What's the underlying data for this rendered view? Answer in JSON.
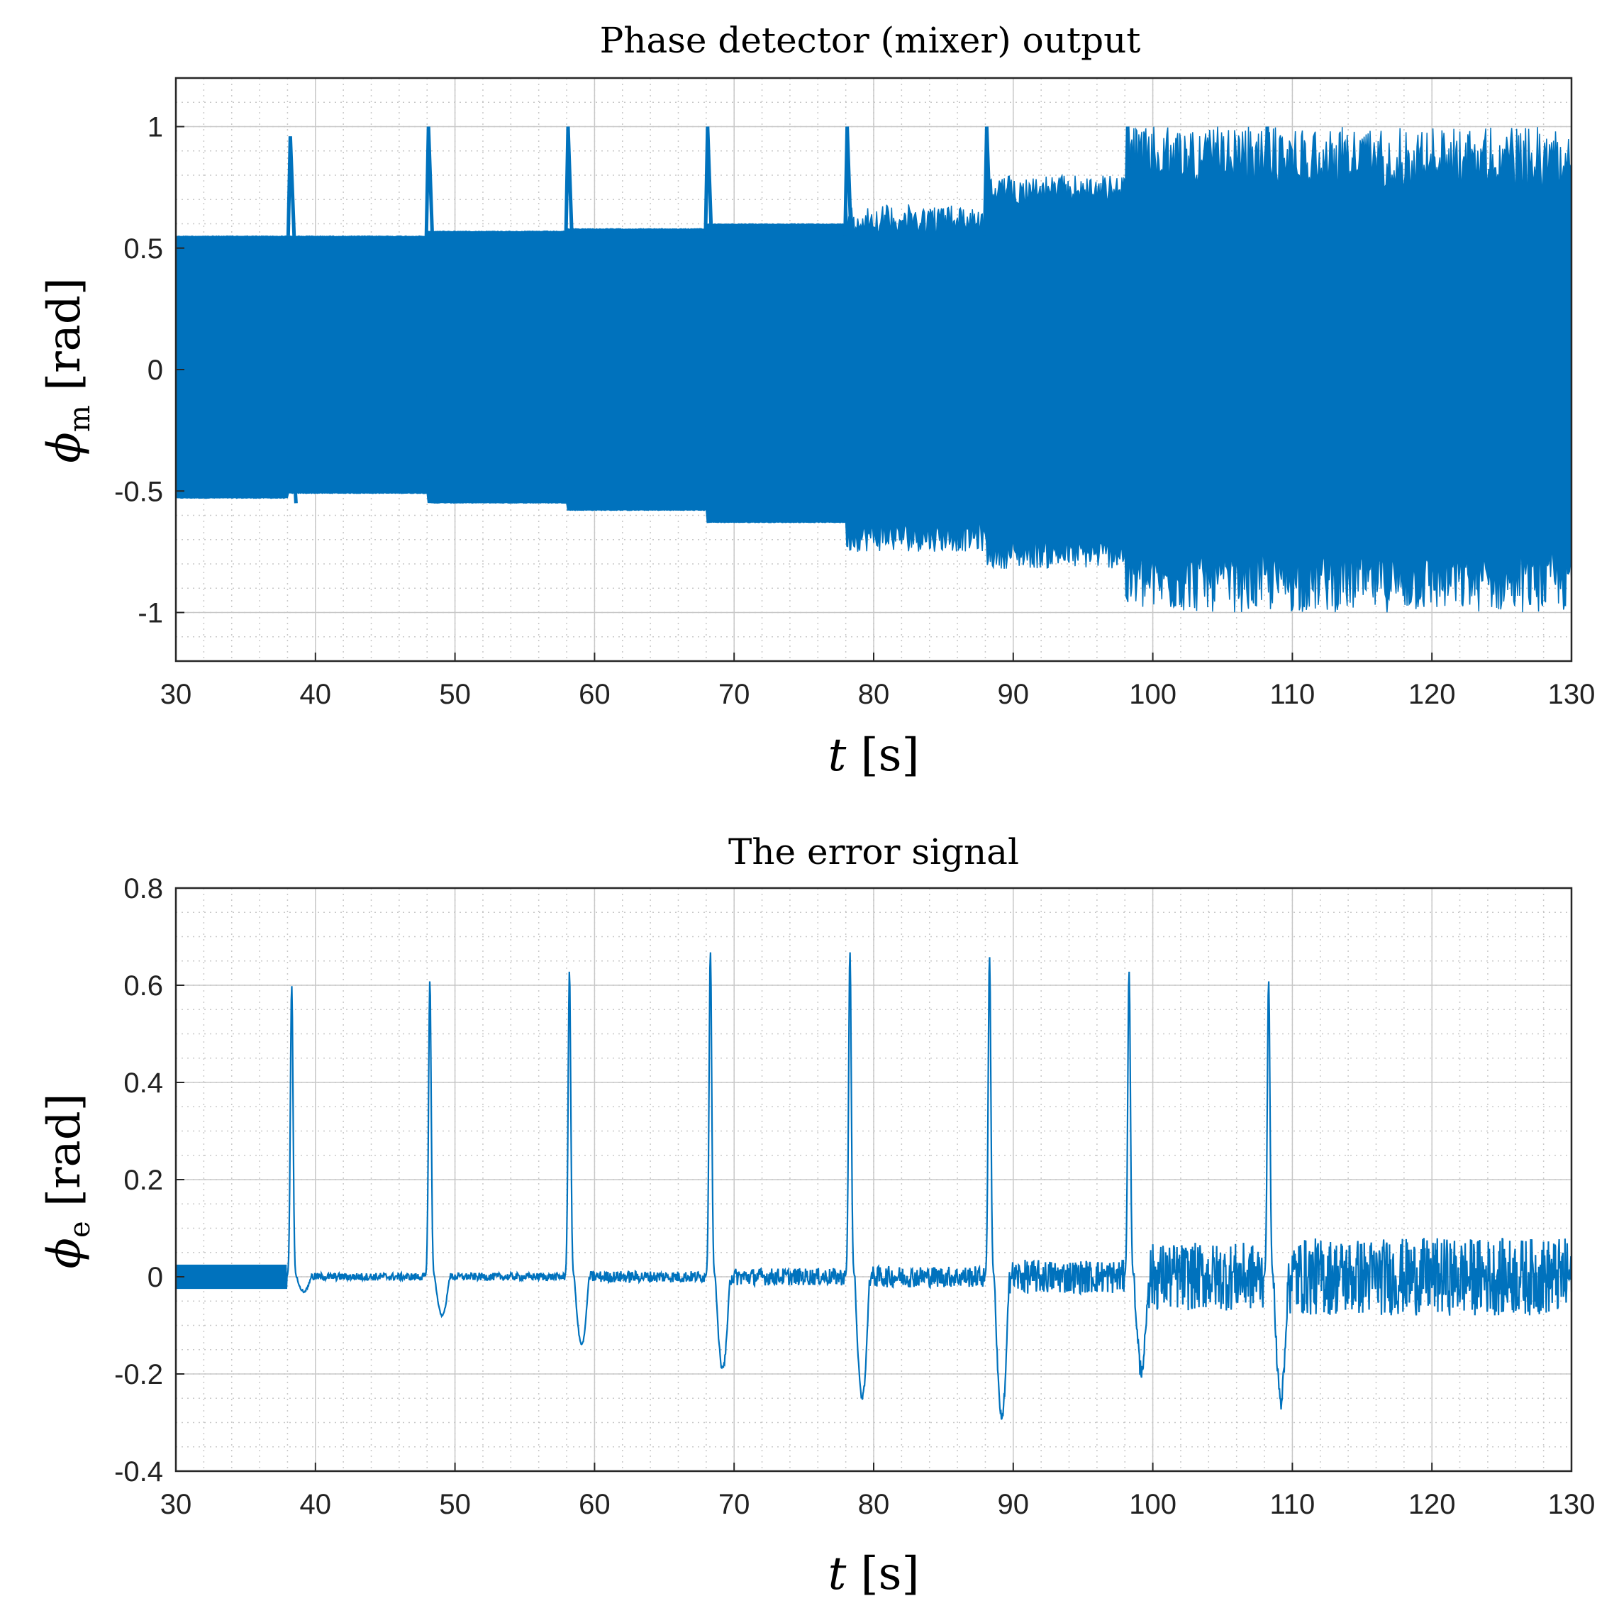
{
  "figure": {
    "background": "#ffffff",
    "series_color": "#0072BD"
  },
  "chart_data": [
    {
      "id": "top",
      "type": "line",
      "title": "Phase detector (mixer) output",
      "ylabel_symbol": "ϕ",
      "ylabel_sub": "m",
      "ylabel_unit": " [rad]",
      "xlabel_symbol": "t",
      "xlabel_unit": " [s]",
      "xlim": [
        30,
        130
      ],
      "ylim": [
        -1.2,
        1.2
      ],
      "xticks": [
        30,
        40,
        50,
        60,
        70,
        80,
        90,
        100,
        110,
        120,
        130
      ],
      "xtick_labels": [
        "30",
        "40",
        "50",
        "60",
        "70",
        "80",
        "90",
        "100",
        "110",
        "120",
        "130"
      ],
      "yticks": [
        -1,
        -0.5,
        0,
        0.5,
        1
      ],
      "ytick_labels": [
        "-1",
        "-0.5",
        "0",
        "0.5",
        "1"
      ],
      "grid": true,
      "minor_grid": true,
      "envelope": {
        "description": "dense oscillation envelope (min/max over time)",
        "segments": [
          {
            "t_start": 30,
            "t_end": 38,
            "max": 0.55,
            "min": -0.53
          },
          {
            "t_start": 38,
            "t_end": 48,
            "max": 0.55,
            "min": -0.51
          },
          {
            "t_start": 48,
            "t_end": 58,
            "max": 0.57,
            "min": -0.55
          },
          {
            "t_start": 58,
            "t_end": 68,
            "max": 0.58,
            "min": -0.58
          },
          {
            "t_start": 68,
            "t_end": 78,
            "max": 0.6,
            "min": -0.63
          },
          {
            "t_start": 78,
            "t_end": 88,
            "max": 0.68,
            "min": -0.75
          },
          {
            "t_start": 88,
            "t_end": 98,
            "max": 0.8,
            "min": -0.82
          },
          {
            "t_start": 98,
            "t_end": 108,
            "max": 1.0,
            "min": -1.0
          },
          {
            "t_start": 108,
            "t_end": 130,
            "max": 1.0,
            "min": -1.0
          }
        ]
      },
      "spikes": [
        {
          "t": 38.2,
          "max": 0.96,
          "min": -0.13
        },
        {
          "t": 48.1,
          "max": 1.0,
          "min": -0.08
        },
        {
          "t": 58.1,
          "max": 1.0,
          "min": -0.08
        },
        {
          "t": 68.1,
          "max": 1.0,
          "min": -0.11
        },
        {
          "t": 78.1,
          "max": 1.0,
          "min": -0.12
        },
        {
          "t": 88.1,
          "max": 1.0,
          "min": -0.2
        },
        {
          "t": 98.2,
          "max": 1.0,
          "min": -0.26
        },
        {
          "t": 108.2,
          "max": 1.0,
          "min": -0.26
        }
      ]
    },
    {
      "id": "bottom",
      "type": "line",
      "title": "The error signal",
      "ylabel_symbol": "ϕ",
      "ylabel_sub": "e",
      "ylabel_unit": " [rad]",
      "xlabel_symbol": "t",
      "xlabel_unit": " [s]",
      "xlim": [
        30,
        130
      ],
      "ylim": [
        -0.4,
        0.8
      ],
      "xticks": [
        30,
        40,
        50,
        60,
        70,
        80,
        90,
        100,
        110,
        120,
        130
      ],
      "xtick_labels": [
        "30",
        "40",
        "50",
        "60",
        "70",
        "80",
        "90",
        "100",
        "110",
        "120",
        "130"
      ],
      "yticks": [
        -0.4,
        -0.2,
        0,
        0.2,
        0.4,
        0.6,
        0.8
      ],
      "ytick_labels": [
        "-0.4",
        "-0.2",
        "0",
        "0.2",
        "0.4",
        "0.6",
        "0.8"
      ],
      "grid": true,
      "minor_grid": true,
      "pulses": [
        {
          "t": 38.3,
          "peak": 0.6,
          "trough": -0.03
        },
        {
          "t": 48.2,
          "peak": 0.61,
          "trough": -0.08
        },
        {
          "t": 58.2,
          "peak": 0.63,
          "trough": -0.14
        },
        {
          "t": 68.3,
          "peak": 0.67,
          "trough": -0.19
        },
        {
          "t": 78.3,
          "peak": 0.67,
          "trough": -0.25
        },
        {
          "t": 88.3,
          "peak": 0.66,
          "trough": -0.29
        },
        {
          "t": 98.3,
          "peak": 0.63,
          "trough": -0.19
        },
        {
          "t": 108.3,
          "peak": 0.61,
          "trough": -0.25
        }
      ],
      "noise_segments": [
        {
          "t_start": 30,
          "t_end": 38,
          "amplitude": 0.025
        },
        {
          "t_start": 38,
          "t_end": 48,
          "amplitude": 0.008
        },
        {
          "t_start": 48,
          "t_end": 58,
          "amplitude": 0.008
        },
        {
          "t_start": 58,
          "t_end": 68,
          "amplitude": 0.012
        },
        {
          "t_start": 68,
          "t_end": 78,
          "amplitude": 0.018
        },
        {
          "t_start": 78,
          "t_end": 88,
          "amplitude": 0.022
        },
        {
          "t_start": 88,
          "t_end": 98,
          "amplitude": 0.035
        },
        {
          "t_start": 98,
          "t_end": 108,
          "amplitude": 0.07
        },
        {
          "t_start": 108,
          "t_end": 130,
          "amplitude": 0.08
        }
      ]
    }
  ]
}
